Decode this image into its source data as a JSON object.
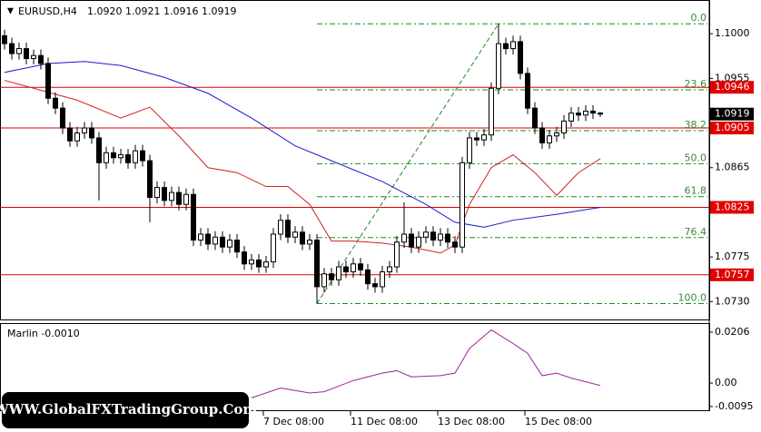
{
  "header": {
    "symbol": "EURUSD,H4",
    "ohlc_text": "1.0920 1.0921 1.0916 1.0919",
    "watermark": "WWW.GlobalFXTradingGroup.Com"
  },
  "chart_data": [
    {
      "type": "candlestick",
      "open": [
        1.0998,
        1.099,
        1.098,
        1.0985,
        1.0975,
        1.0978,
        1.097,
        1.0935,
        1.0925,
        1.0905,
        1.0892,
        1.09,
        1.0905,
        1.0895,
        1.087,
        1.088,
        1.0875,
        1.0878,
        1.087,
        1.0882,
        1.0872,
        1.0835,
        1.0845,
        1.0832,
        1.084,
        1.0828,
        1.0838,
        1.0792,
        1.0798,
        1.0788,
        1.0795,
        1.0785,
        1.0792,
        1.078,
        1.0768,
        1.0772,
        1.0765,
        1.077,
        1.0798,
        1.0812,
        1.0795,
        1.08,
        1.0788,
        1.0792,
        1.0745,
        1.0758,
        1.0752,
        1.0765,
        1.076,
        1.0768,
        1.0762,
        1.0748,
        1.0745,
        1.076,
        1.0765,
        1.079,
        1.0798,
        1.0785,
        1.0795,
        1.08,
        1.0792,
        1.0798,
        1.079,
        1.0785,
        1.087,
        1.0895,
        1.0893,
        1.0898,
        1.0945,
        1.099,
        1.0985,
        1.0992,
        1.096,
        1.0925,
        1.0905,
        1.089,
        1.0897,
        1.09,
        1.0912,
        1.092,
        1.0918,
        1.0922,
        1.092
      ],
      "high": [
        1.1004,
        1.0996,
        1.0991,
        1.0991,
        1.0984,
        1.0984,
        1.0976,
        1.0941,
        1.0931,
        1.0911,
        1.0906,
        1.0911,
        1.0911,
        1.0901,
        1.0886,
        1.0886,
        1.0884,
        1.0884,
        1.0888,
        1.0888,
        1.0878,
        1.0851,
        1.0851,
        1.0846,
        1.0846,
        1.0844,
        1.0844,
        1.0804,
        1.0804,
        1.0801,
        1.0801,
        1.0798,
        1.0798,
        1.0786,
        1.0778,
        1.0778,
        1.0776,
        1.0804,
        1.0818,
        1.0818,
        1.0806,
        1.0806,
        1.0798,
        1.0798,
        1.0764,
        1.0764,
        1.0771,
        1.0771,
        1.0774,
        1.0774,
        1.0768,
        1.0754,
        1.0766,
        1.0771,
        1.0796,
        1.083,
        1.0804,
        1.0801,
        1.0806,
        1.0806,
        1.0804,
        1.0804,
        1.0796,
        1.0876,
        1.0901,
        1.0901,
        1.0904,
        1.0951,
        1.101,
        1.0996,
        1.0998,
        1.0998,
        1.0966,
        1.0931,
        1.0911,
        1.0903,
        1.0906,
        1.0918,
        1.0926,
        1.0926,
        1.0928,
        1.0928,
        1.0921
      ],
      "low": [
        1.0984,
        1.0974,
        1.0974,
        1.0969,
        1.0969,
        1.0964,
        1.0929,
        1.0919,
        1.0899,
        1.0886,
        1.0886,
        1.0894,
        1.0889,
        1.0832,
        1.0864,
        1.0869,
        1.0869,
        1.0864,
        1.0864,
        1.0866,
        1.081,
        1.0829,
        1.0826,
        1.0826,
        1.0822,
        1.0822,
        1.0786,
        1.0786,
        1.0782,
        1.0782,
        1.0779,
        1.0779,
        1.0774,
        1.0762,
        1.0762,
        1.0759,
        1.0759,
        1.0764,
        1.0792,
        1.0789,
        1.0789,
        1.0782,
        1.0782,
        1.0728,
        1.0739,
        1.0746,
        1.0746,
        1.0754,
        1.0754,
        1.0756,
        1.0742,
        1.0739,
        1.0739,
        1.0754,
        1.0759,
        1.0784,
        1.0779,
        1.0779,
        1.0789,
        1.0786,
        1.0786,
        1.0784,
        1.0779,
        1.0779,
        1.0864,
        1.0887,
        1.0887,
        1.0892,
        1.0939,
        1.0979,
        1.0979,
        1.0954,
        1.0919,
        1.0899,
        1.0884,
        1.0884,
        1.0891,
        1.0894,
        1.0906,
        1.0912,
        1.0912,
        1.0914,
        1.0916
      ],
      "close": [
        1.099,
        1.098,
        1.0985,
        1.0975,
        1.0978,
        1.097,
        1.0935,
        1.0925,
        1.0905,
        1.0892,
        1.09,
        1.0905,
        1.0895,
        1.087,
        1.088,
        1.0875,
        1.0878,
        1.087,
        1.0882,
        1.0872,
        1.0835,
        1.0845,
        1.0832,
        1.084,
        1.0828,
        1.0838,
        1.0792,
        1.0798,
        1.0788,
        1.0795,
        1.0785,
        1.0792,
        1.078,
        1.0768,
        1.0772,
        1.0765,
        1.077,
        1.0798,
        1.0812,
        1.0795,
        1.08,
        1.0788,
        1.0792,
        1.0745,
        1.0758,
        1.0752,
        1.0765,
        1.076,
        1.0768,
        1.0762,
        1.0748,
        1.0745,
        1.076,
        1.0765,
        1.079,
        1.0798,
        1.0785,
        1.0795,
        1.08,
        1.0792,
        1.0798,
        1.079,
        1.0785,
        1.087,
        1.0895,
        1.0893,
        1.0898,
        1.0945,
        1.099,
        1.0985,
        1.0992,
        1.096,
        1.0925,
        1.0905,
        1.089,
        1.0897,
        1.09,
        1.0912,
        1.092,
        1.0918,
        1.0922,
        1.092,
        1.0919
      ],
      "up_color": "#ffffff",
      "down_color": "#000000",
      "overlays": [
        {
          "color": "#1a1acc",
          "x": [
            0,
            6,
            11,
            16,
            22,
            28,
            34,
            40,
            46,
            52,
            58,
            62,
            66,
            70,
            76,
            82
          ],
          "values": [
            1.0961,
            1.097,
            1.0972,
            1.0968,
            1.0956,
            1.094,
            1.0915,
            1.0887,
            1.0869,
            1.0851,
            1.0828,
            1.081,
            1.0805,
            1.0812,
            1.0818,
            1.0825
          ]
        },
        {
          "color": "#d42020",
          "x": [
            0,
            4,
            10,
            16,
            20,
            24,
            28,
            32,
            36,
            39,
            42,
            45,
            48,
            52,
            56,
            60,
            62,
            64,
            67,
            70,
            73,
            76,
            79,
            82
          ],
          "values": [
            1.0953,
            1.0945,
            1.0933,
            1.0915,
            1.0926,
            1.0897,
            1.0865,
            1.086,
            1.0846,
            1.0846,
            1.0828,
            1.0791,
            1.0791,
            1.0789,
            1.0785,
            1.0779,
            1.0787,
            1.0828,
            1.0865,
            1.0878,
            1.086,
            1.0837,
            1.086,
            1.0874
          ]
        }
      ],
      "levels": [
        1.0946,
        1.0905,
        1.0825,
        1.0757
      ],
      "level_color": "#e00000",
      "last_price": 1.0919,
      "fib": {
        "low": 1.0728,
        "high": 1.101,
        "start": 43,
        "end": 68,
        "color": "#1a8a1a",
        "levels": [
          {
            "value": 0,
            "label": "0.0"
          },
          23.6,
          38.2,
          {
            "value": 50,
            "label": "50.0"
          },
          61.8,
          76.4,
          {
            "value": 100,
            "label": "100.0"
          }
        ]
      },
      "ylim": [
        1.0712,
        1.1034
      ],
      "yticks": [
        {
          "value": 1.1,
          "label": "1.1000"
        },
        1.0955,
        1.0865,
        1.0775,
        {
          "value": 1.073,
          "label": "1.0730"
        }
      ],
      "xlim": [
        0,
        83
      ],
      "xticks": [
        {
          "value": 36,
          "label": "7 Dec 08:00"
        },
        {
          "value": 48,
          "label": "11 Dec 08:00"
        },
        {
          "value": 60,
          "label": "13 Dec 08:00"
        },
        {
          "value": 72,
          "label": "15 Dec 08:00"
        }
      ]
    },
    {
      "type": "line",
      "title": "Marlin -0.0010",
      "color": "#a020a0",
      "x": [
        34,
        38,
        42,
        44,
        48,
        52,
        54,
        56,
        60,
        62,
        64,
        67,
        70,
        72,
        74,
        76,
        78,
        82
      ],
      "values": [
        -0.006,
        -0.002,
        -0.004,
        -0.0035,
        0.001,
        0.004,
        0.005,
        0.0025,
        0.003,
        0.004,
        0.014,
        0.0215,
        0.016,
        0.012,
        0.003,
        0.004,
        0.002,
        -0.001
      ],
      "ylim": [
        -0.011,
        0.0239
      ],
      "yticks": [
        0.0206,
        {
          "value": 0,
          "label": "0.00"
        },
        -0.0095
      ]
    }
  ]
}
